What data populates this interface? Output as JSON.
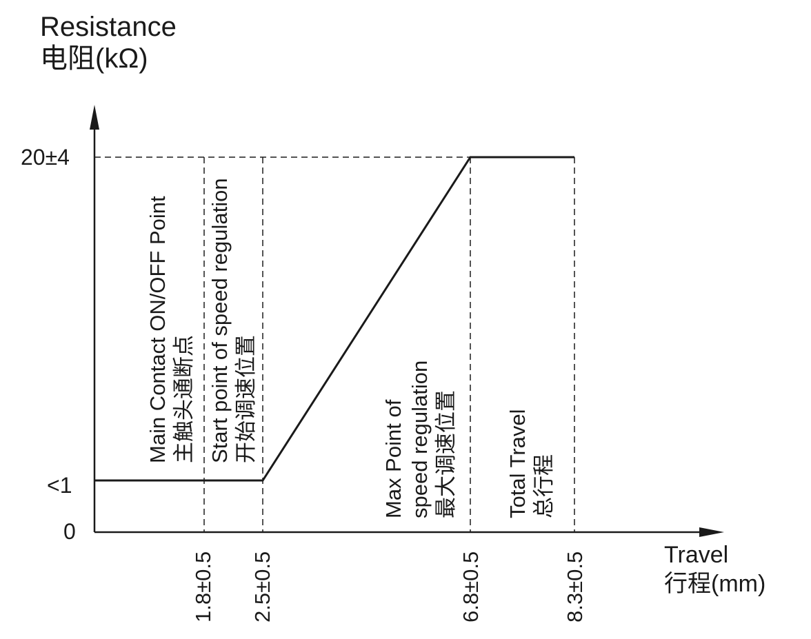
{
  "chart_data": {
    "type": "line",
    "ylabel": [
      "Resistance",
      "电阻(kΩ)"
    ],
    "xlabel": [
      "Travel",
      "行程(mm)"
    ],
    "ytick_labels": [
      {
        "value": 0,
        "label": "0"
      },
      {
        "value": 1,
        "label": "<1"
      },
      {
        "value": 20,
        "label": "20±4"
      }
    ],
    "xtick_labels": [
      {
        "value": 1.8,
        "label": "1.8±0.5"
      },
      {
        "value": 2.5,
        "label": "2.5±0.5"
      },
      {
        "value": 6.8,
        "label": "6.8±0.5"
      },
      {
        "value": 8.3,
        "label": "8.3±0.5"
      }
    ],
    "series": [
      {
        "x": [
          0,
          2.5,
          6.8,
          8.3
        ],
        "y": [
          1,
          1,
          20,
          20
        ]
      }
    ],
    "annotations": [
      {
        "x": 1.8,
        "lines": [
          "Main Contact ON/OFF Point",
          "主触头通断点"
        ]
      },
      {
        "x": 2.5,
        "lines": [
          "Start point of speed regulation",
          "开始调速位置"
        ]
      },
      {
        "x": 6.8,
        "lines": [
          "Max Point of",
          "speed regulation",
          "最大调速位置"
        ]
      },
      {
        "x": 8.3,
        "lines": [
          "Total Travel",
          "总行程"
        ]
      }
    ],
    "grid": false
  }
}
